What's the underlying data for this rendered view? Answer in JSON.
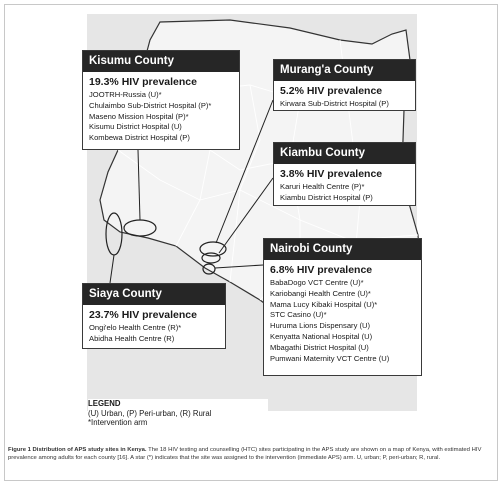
{
  "boxes": {
    "kisumu": {
      "title": "Kisumu County",
      "prevalence": "19.3% HIV prevalence",
      "sites": [
        "JOOTRH-Russia (U)*",
        "Chulaimbo Sub-District Hospital (P)*",
        "Maseno Mission Hospital (P)*",
        "Kisumu District Hospital (U)",
        "Kombewa District Hospital (P)"
      ]
    },
    "muranga": {
      "title": "Murang'a County",
      "prevalence": "5.2% HIV prevalence",
      "sites": [
        "Kirwara Sub-District Hospital (P)"
      ]
    },
    "kiambu": {
      "title": "Kiambu County",
      "prevalence": "3.8% HIV prevalence",
      "sites": [
        "Karuri Health Centre (P)*",
        "Kiambu District Hospital (P)"
      ]
    },
    "nairobi": {
      "title": "Nairobi County",
      "prevalence": "6.8% HIV prevalence",
      "sites": [
        "BabaDogo VCT Centre (U)*",
        "Kariobangi Health Centre (U)*",
        "Mama Lucy Kibaki Hospital (U)*",
        "STC Casino (U)*",
        "Huruma Lions Dispensary (U)",
        "Kenyatta National Hospital (U)",
        "Mbagathi District Hospital (U)",
        "Pumwani Maternity VCT Centre (U)"
      ]
    },
    "siaya": {
      "title": "Siaya County",
      "prevalence": "23.7% HIV prevalence",
      "sites": [
        "Ongi'elo Health Centre (R)*",
        "Abidha Health Centre (R)"
      ]
    }
  },
  "legend": {
    "title": "LEGEND",
    "line1": "(U) Urban, (P) Peri-urban, (R) Rural",
    "line2": "*Intervention arm"
  },
  "caption": {
    "label": "Figure 1 Distribution of APS study sites in Kenya.",
    "text": "The 18 HIV testing and counselling (HTC) sites participating in the APS study are shown on a map of Kenya, with estimated HIV prevalence among adults for each county [16]. A star (*) indicates that the site was assigned to the intervention (immediate APS) arm. U, urban; P, peri-urban; R, rural."
  },
  "colors": {
    "header_bg": "#262626",
    "map_bg": "#e6e6e6",
    "county_line": "#ffffff",
    "border_line": "#333333"
  }
}
